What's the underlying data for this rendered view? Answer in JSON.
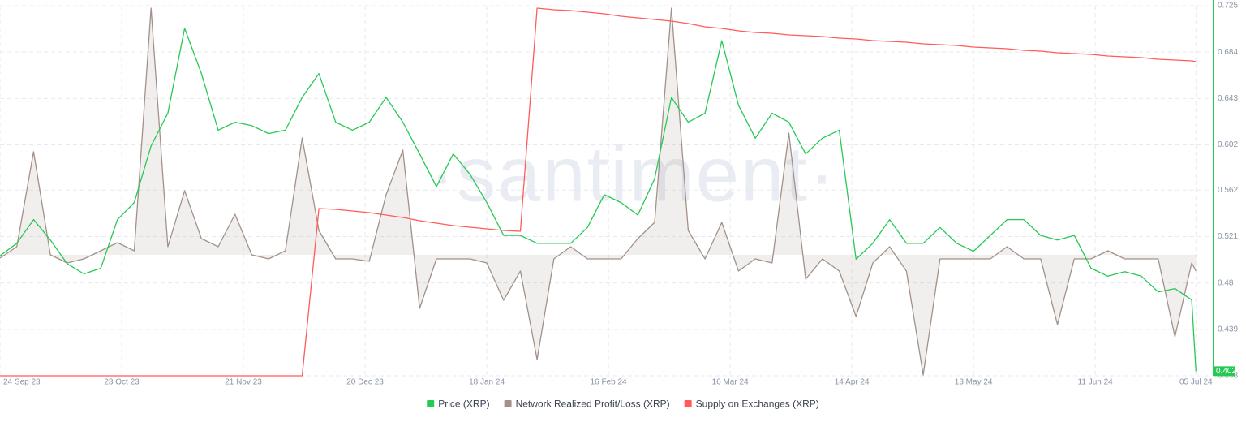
{
  "chart_data": {
    "type": "line",
    "watermark": "·santiment·",
    "x": [
      "2023-09-24",
      "2023-09-28",
      "2023-10-02",
      "2023-10-06",
      "2023-10-10",
      "2023-10-14",
      "2023-10-18",
      "2023-10-22",
      "2023-10-26",
      "2023-10-30",
      "2023-11-03",
      "2023-11-07",
      "2023-11-11",
      "2023-11-15",
      "2023-11-19",
      "2023-11-23",
      "2023-11-27",
      "2023-12-01",
      "2023-12-05",
      "2023-12-09",
      "2023-12-13",
      "2023-12-17",
      "2023-12-21",
      "2023-12-25",
      "2023-12-29",
      "2024-01-02",
      "2024-01-06",
      "2024-01-10",
      "2024-01-14",
      "2024-01-18",
      "2024-01-22",
      "2024-01-26",
      "2024-01-30",
      "2024-02-03",
      "2024-02-07",
      "2024-02-11",
      "2024-02-15",
      "2024-02-19",
      "2024-02-23",
      "2024-02-27",
      "2024-03-02",
      "2024-03-06",
      "2024-03-10",
      "2024-03-14",
      "2024-03-18",
      "2024-03-22",
      "2024-03-26",
      "2024-03-30",
      "2024-04-03",
      "2024-04-07",
      "2024-04-11",
      "2024-04-15",
      "2024-04-19",
      "2024-04-23",
      "2024-04-27",
      "2024-05-01",
      "2024-05-05",
      "2024-05-09",
      "2024-05-13",
      "2024-05-17",
      "2024-05-21",
      "2024-05-25",
      "2024-05-29",
      "2024-06-02",
      "2024-06-06",
      "2024-06-10",
      "2024-06-14",
      "2024-06-18",
      "2024-06-22",
      "2024-06-26",
      "2024-06-30",
      "2024-07-04",
      "2024-07-05"
    ],
    "xlim": [
      "2023-09-24",
      "2024-07-09"
    ],
    "xticks": [
      {
        "value": "2023-09-24",
        "label": "24 Sep 23"
      },
      {
        "value": "2023-10-23",
        "label": "23 Oct 23"
      },
      {
        "value": "2023-11-21",
        "label": "21 Nov 23"
      },
      {
        "value": "2023-12-20",
        "label": "20 Dec 23"
      },
      {
        "value": "2024-01-18",
        "label": "18 Jan 24"
      },
      {
        "value": "2024-02-16",
        "label": "16 Feb 24"
      },
      {
        "value": "2024-03-16",
        "label": "16 Mar 24"
      },
      {
        "value": "2024-04-14",
        "label": "14 Apr 24"
      },
      {
        "value": "2024-05-13",
        "label": "13 May 24"
      },
      {
        "value": "2024-06-11",
        "label": "11 Jun 24"
      },
      {
        "value": "2024-07-05",
        "label": "05 Jul 24"
      }
    ],
    "ylim": [
      0.398,
      0.725
    ],
    "yticks": [
      0.725,
      0.684,
      0.643,
      0.602,
      0.562,
      0.521,
      0.48,
      0.439,
      0.398
    ],
    "grid": true,
    "legend": "bottom",
    "series": [
      {
        "name": "Price (XRP)",
        "color": "#26c953",
        "values": [
          0.504,
          0.515,
          0.536,
          0.518,
          0.497,
          0.488,
          0.493,
          0.536,
          0.551,
          0.601,
          0.63,
          0.705,
          0.665,
          0.615,
          0.622,
          0.619,
          0.612,
          0.615,
          0.644,
          0.665,
          0.622,
          0.615,
          0.622,
          0.644,
          0.622,
          0.594,
          0.565,
          0.594,
          0.576,
          0.551,
          0.522,
          0.522,
          0.515,
          0.515,
          0.515,
          0.529,
          0.558,
          0.551,
          0.54,
          0.572,
          0.644,
          0.622,
          0.63,
          0.694,
          0.637,
          0.608,
          0.63,
          0.622,
          0.594,
          0.608,
          0.615,
          0.501,
          0.515,
          0.536,
          0.515,
          0.515,
          0.529,
          0.515,
          0.508,
          0.522,
          0.536,
          0.536,
          0.522,
          0.518,
          0.522,
          0.493,
          0.486,
          0.49,
          0.486,
          0.472,
          0.475,
          0.465,
          0.402
        ]
      },
      {
        "name": "Network Realized Profit/Loss (XRP)",
        "color": "#a39189",
        "ylim": [
          -149,
          307
        ],
        "area": true,
        "values": [
          -4,
          10,
          127,
          0,
          -10,
          -5,
          5,
          15,
          5,
          304,
          10,
          79,
          20,
          10,
          50,
          0,
          -5,
          5,
          144,
          30,
          -5,
          -5,
          -8,
          74,
          129,
          -66,
          -5,
          -5,
          -5,
          -10,
          -56,
          -20,
          -129,
          -5,
          10,
          -5,
          -5,
          -5,
          20,
          40,
          304,
          30,
          -5,
          40,
          -20,
          -5,
          -10,
          150,
          -30,
          -5,
          -20,
          -76,
          -10,
          10,
          -20,
          -148,
          -5,
          -5,
          -5,
          -5,
          10,
          -5,
          -5,
          -86,
          -5,
          -5,
          5,
          -5,
          -5,
          -5,
          -101,
          -10,
          -20
        ]
      },
      {
        "name": "Supply on Exchanges (XRP)",
        "color": "#ff5b5b",
        "ylim": [
          0,
          456
        ],
        "values": [
          0,
          0,
          0,
          0,
          0,
          0,
          0,
          0,
          0,
          0,
          0,
          0,
          0,
          0,
          0,
          0,
          0,
          0,
          0,
          206,
          205,
          203,
          201,
          198,
          195,
          191,
          188,
          185,
          183,
          181,
          179,
          178,
          453,
          451,
          450,
          448,
          446,
          443,
          441,
          439,
          437,
          434,
          430,
          428,
          425,
          423,
          422,
          420,
          419,
          418,
          416,
          415,
          413,
          412,
          411,
          409,
          408,
          407,
          405,
          404,
          403,
          401,
          400,
          398,
          397,
          396,
          394,
          393,
          392,
          390,
          389,
          388,
          387
        ]
      }
    ]
  }
}
